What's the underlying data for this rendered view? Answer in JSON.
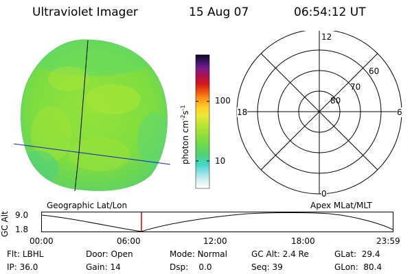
{
  "header": {
    "title": "Ultraviolet Imager",
    "date": "15 Aug 07",
    "time": "06:54:12 UT"
  },
  "colors": {
    "disk_base": "#7dda3e",
    "geo_grid_geographic": "#000000",
    "geo_grid_magnetic": "#1a1acc",
    "time_marker": "#cc0000"
  },
  "colorbar": {
    "label": "photon cm",
    "sup1": "-2",
    "mid": "s",
    "sup2": "-1",
    "ticks": [
      "100",
      "10"
    ]
  },
  "polar_plot": {
    "mlt_labels": {
      "top": "12",
      "left": "18",
      "right": "6",
      "bottom": "0"
    },
    "lat_labels": [
      "60",
      "70",
      "80"
    ]
  },
  "labels": {
    "left_panel": "Geographic Lat/Lon",
    "right_panel": "Apex MLat/MLT"
  },
  "altitude_plot": {
    "axis_label": "GC Alt",
    "y_ticks": [
      "9.0",
      "1.8"
    ],
    "x_ticks": [
      "00:00",
      "06:00",
      "12:00",
      "18:00",
      "23:59"
    ]
  },
  "footer": {
    "row1": [
      {
        "key": "Flt:",
        "val": "LBHL"
      },
      {
        "key": "Door:",
        "val": "Open"
      },
      {
        "key": "Mode:",
        "val": "Normal"
      },
      {
        "key": "GC Alt:",
        "val": "2.4 Re"
      },
      {
        "key": "GLat:",
        "val": "29.4"
      }
    ],
    "row2": [
      {
        "key": "IP:",
        "val": "36.0"
      },
      {
        "key": "Gain:",
        "val": "14"
      },
      {
        "key": "Dsp:",
        "val": "0.0"
      },
      {
        "key": "Seq:",
        "val": "39"
      },
      {
        "key": "GLon:",
        "val": "80.4"
      }
    ]
  }
}
